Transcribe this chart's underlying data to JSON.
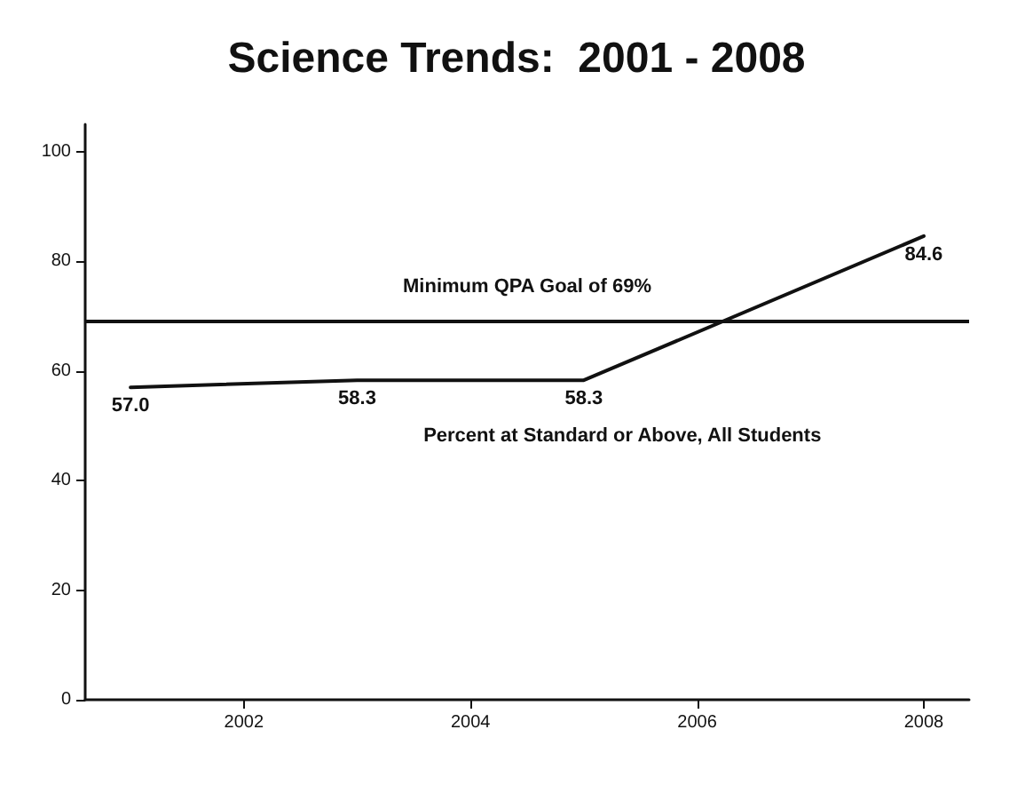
{
  "chart_data": {
    "type": "line",
    "title": "Science Trends:  2001 - 2008",
    "x": [
      2001,
      2003,
      2005,
      2008
    ],
    "series": [
      {
        "name": "Percent at Standard or Above, All Students",
        "color": "#111111",
        "values": [
          57.0,
          58.3,
          58.3,
          84.6
        ],
        "value_labels": [
          "57.0",
          "58.3",
          "58.3",
          "84.6"
        ]
      }
    ],
    "xlim": [
      2000.6,
      2008.4
    ],
    "xticks": [
      2002,
      2004,
      2006,
      2008
    ],
    "ylim": [
      0,
      105
    ],
    "yticks": [
      0,
      20,
      40,
      60,
      80,
      100
    ],
    "ref_lines": [
      {
        "axis": "y",
        "value": 69,
        "label": "Minimum QPA Goal of 69%",
        "color": "#111111"
      }
    ],
    "grid": false,
    "marker": "none",
    "line_style": "solid"
  }
}
